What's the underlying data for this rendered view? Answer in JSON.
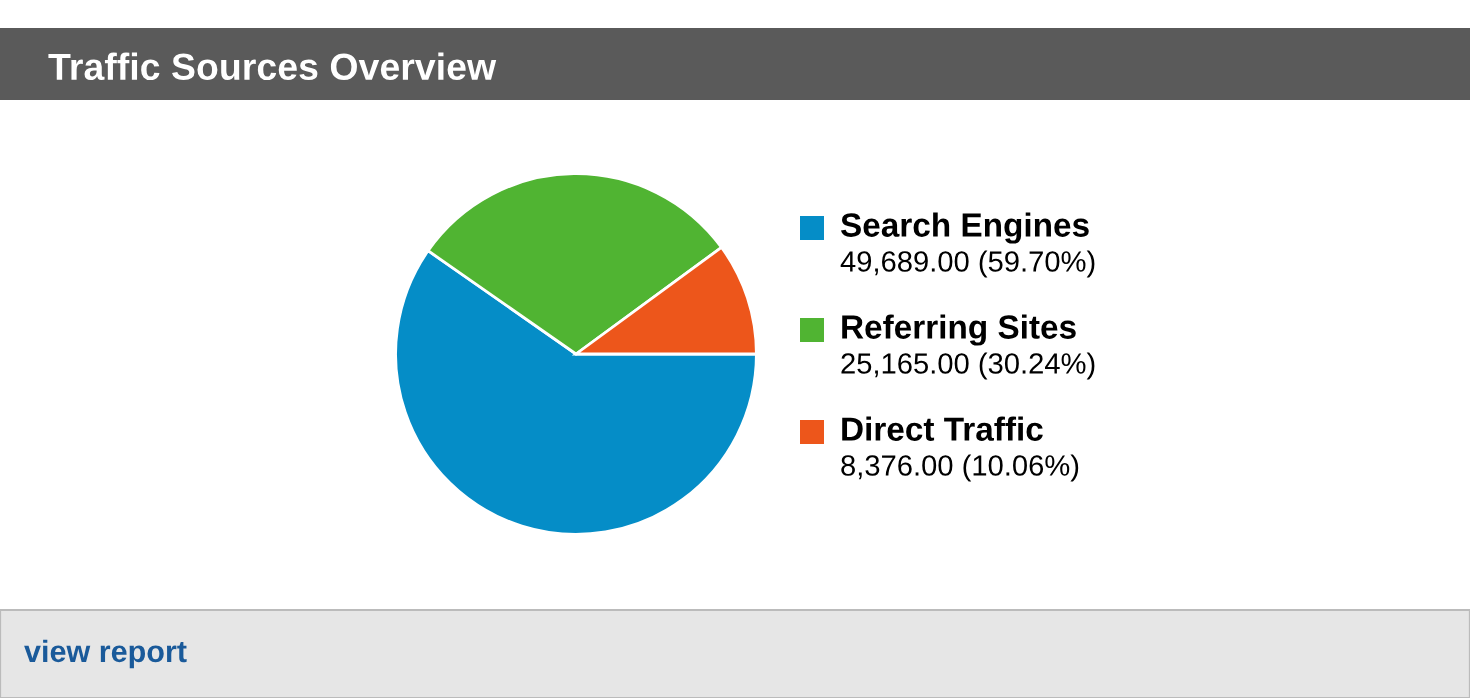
{
  "chart_data": {
    "type": "pie",
    "title": "Traffic Sources Overview",
    "categories": [
      "Search Engines",
      "Referring Sites",
      "Direct Traffic"
    ],
    "values": [
      49689,
      25165,
      8376
    ],
    "value_labels": [
      "49,689.00 (59.70%)",
      "25,165.00 (30.24%)",
      "8,376.00 (10.06%)"
    ],
    "colors": [
      "#058dc7",
      "#50b432",
      "#ed561b"
    ],
    "legend": "right",
    "annotations": [
      "view report"
    ]
  }
}
